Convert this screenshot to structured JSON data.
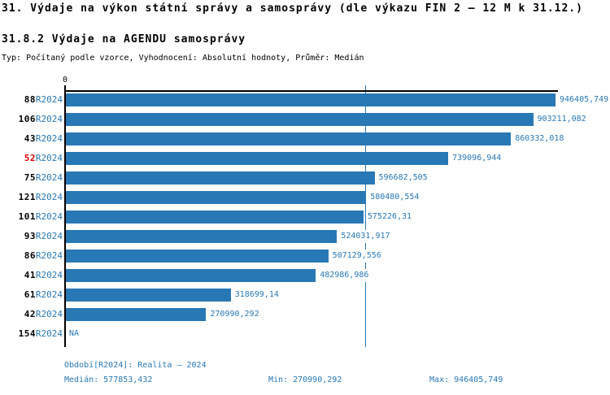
{
  "title": "31. Výdaje na výkon státní správy a samosprávy (dle výkazu FIN 2 – 12 M k 31.12.)",
  "subtitle": "31.8.2 Výdaje na AGENDU samosprávy",
  "meta_line": "Typ: Počítaný podle vzorce, Vyhodnocení: Absolutní hodnoty, Průměr: Medián",
  "colors": {
    "bar": "#2878b5",
    "accent_blue": "#2878b5",
    "highlight_red": "#dd0000",
    "axis_black": "#000000"
  },
  "chart_data": {
    "type": "bar",
    "orientation": "horizontal",
    "title": "31.8.2 Výdaje na AGENDU samosprávy",
    "value_axis": {
      "origin_label": "0",
      "min": 0,
      "max": 946405.749
    },
    "median_value": 577853.432,
    "period_label": "R2024",
    "categories": [
      "88",
      "106",
      "43",
      "52",
      "75",
      "121",
      "101",
      "93",
      "86",
      "41",
      "61",
      "42",
      "154"
    ],
    "rows": [
      {
        "category": "88",
        "period": "R2024",
        "value": 946405.749,
        "label": "946405,749",
        "highlight": false
      },
      {
        "category": "106",
        "period": "R2024",
        "value": 903211.082,
        "label": "903211,082",
        "highlight": false
      },
      {
        "category": "43",
        "period": "R2024",
        "value": 860332.018,
        "label": "860332,018",
        "highlight": false
      },
      {
        "category": "52",
        "period": "R2024",
        "value": 739096.944,
        "label": "739096,944",
        "highlight": true
      },
      {
        "category": "75",
        "period": "R2024",
        "value": 596682.505,
        "label": "596682,505",
        "highlight": false
      },
      {
        "category": "121",
        "period": "R2024",
        "value": 580480.554,
        "label": "580480,554",
        "highlight": false
      },
      {
        "category": "101",
        "period": "R2024",
        "value": 575226.31,
        "label": "575226,31",
        "highlight": false
      },
      {
        "category": "93",
        "period": "R2024",
        "value": 524031.917,
        "label": "524031,917",
        "highlight": false
      },
      {
        "category": "86",
        "period": "R2024",
        "value": 507129.556,
        "label": "507129,556",
        "highlight": false
      },
      {
        "category": "41",
        "period": "R2024",
        "value": 482986.986,
        "label": "482986,986",
        "highlight": false
      },
      {
        "category": "61",
        "period": "R2024",
        "value": 318699.14,
        "label": "318699,14",
        "highlight": false
      },
      {
        "category": "42",
        "period": "R2024",
        "value": 270990.292,
        "label": "270990,292",
        "highlight": false
      },
      {
        "category": "154",
        "period": "R2024",
        "value": null,
        "label": "NA",
        "highlight": false
      }
    ]
  },
  "footer": {
    "period_line": "Období[R2024]: Realita – 2024",
    "median": "Medián: 577853,432",
    "min": "Min: 270990,292",
    "max": "Max: 946405,749"
  }
}
